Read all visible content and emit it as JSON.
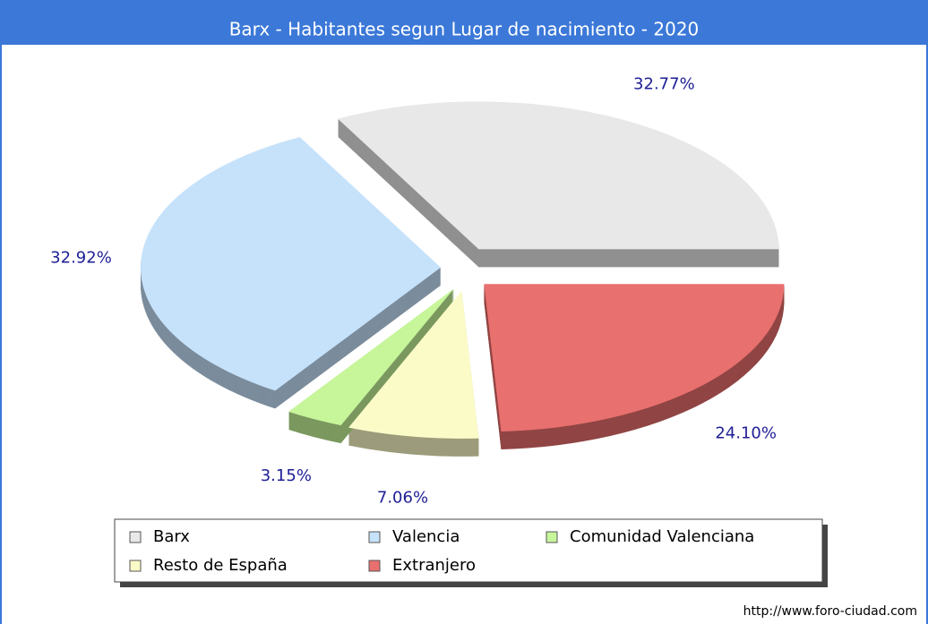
{
  "chart_data": {
    "type": "pie",
    "title": "Barx - Habitantes segun Lugar de nacimiento - 2020",
    "categories": [
      "Barx",
      "Extranjero",
      "Resto de España",
      "Comunidad Valenciana",
      "Valencia"
    ],
    "values": [
      32.77,
      24.1,
      7.06,
      3.15,
      32.92
    ],
    "value_labels": [
      "32.77%",
      "24.10%",
      "7.06%",
      "3.15%",
      "32.92%"
    ],
    "colors": [
      "#e8e8e8",
      "#e8706e",
      "#fbfbc8",
      "#c6f59a",
      "#c6e2fb"
    ],
    "legend": "bottom",
    "legend_order": [
      0,
      4,
      3,
      2,
      1
    ],
    "source": "http://www.foro-ciudad.com"
  }
}
